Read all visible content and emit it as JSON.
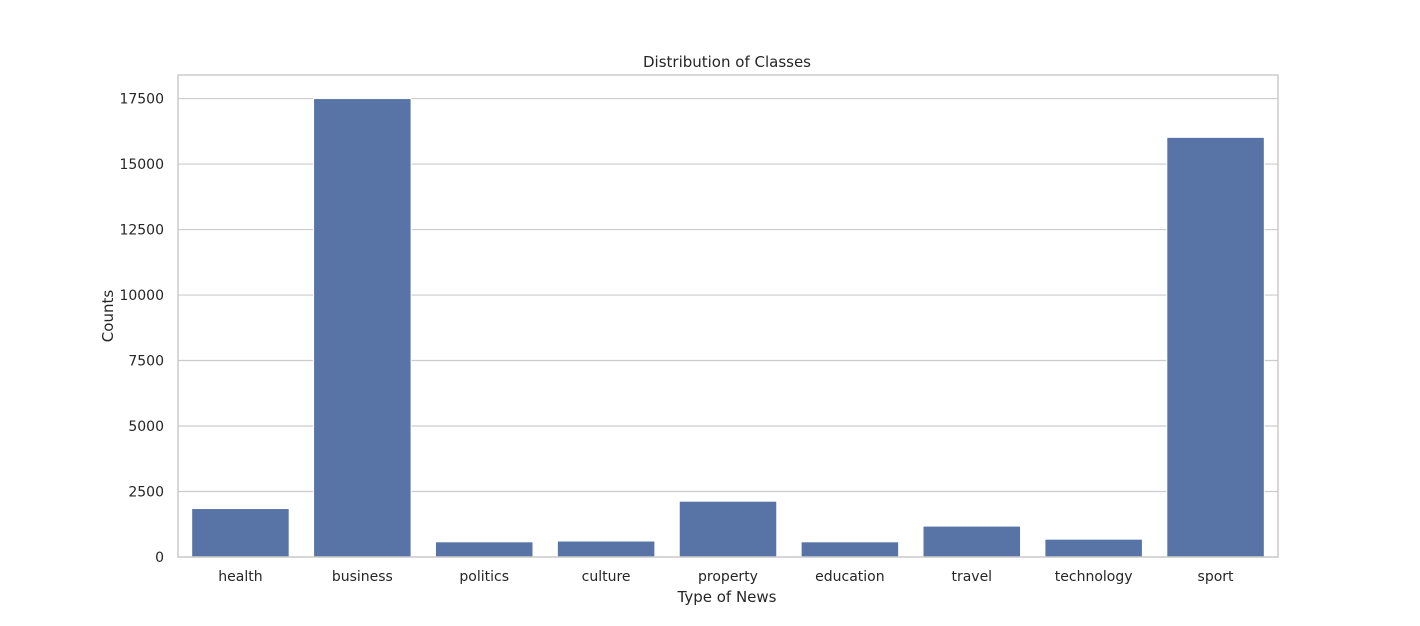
{
  "chart_data": {
    "type": "bar",
    "title": "Distribution of Classes",
    "xlabel": "Type of News",
    "ylabel": "Counts",
    "categories": [
      "health",
      "business",
      "politics",
      "culture",
      "property",
      "education",
      "travel",
      "technology",
      "sport"
    ],
    "values": [
      1850,
      17500,
      580,
      610,
      2130,
      580,
      1180,
      680,
      16020
    ],
    "yticks": [
      0,
      2500,
      5000,
      7500,
      10000,
      12500,
      15000,
      17500
    ],
    "ylim": [
      0,
      18400
    ],
    "grid": true,
    "bar_color": "#5874a6"
  }
}
